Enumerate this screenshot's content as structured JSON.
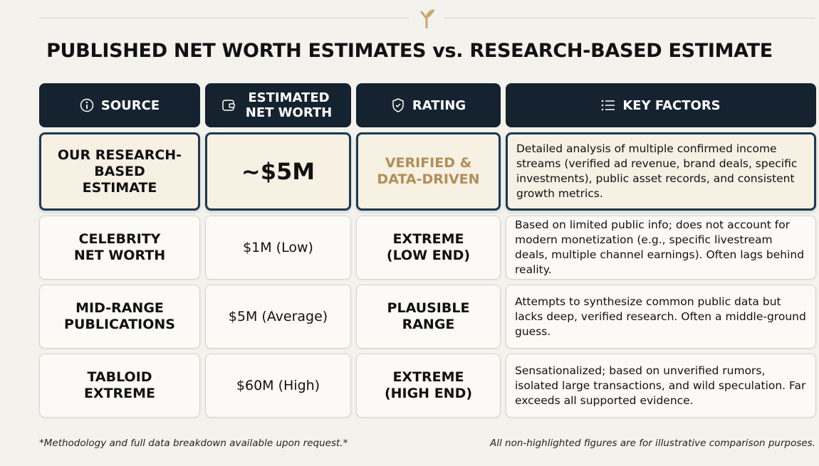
{
  "title": "PUBLISHED NET WORTH ESTIMATES vs. RESEARCH-BASED ESTIMATE",
  "colors": {
    "header_bg": "#14232f",
    "highlight_border": "#1c3a52",
    "gold": "#b08f57",
    "highlight_bg": "#f7f1e4"
  },
  "headers": [
    {
      "label": "SOURCE",
      "icon": "info-icon"
    },
    {
      "label": "ESTIMATED NET WORTH",
      "icon": "wallet-icon"
    },
    {
      "label": "RATING",
      "icon": "shield-check-icon"
    },
    {
      "label": "KEY FACTORS",
      "icon": "list-icon"
    }
  ],
  "rows": [
    {
      "source": "OUR RESEARCH-BASED ESTIMATE",
      "worth": "~$5M",
      "rating": "VERIFIED & DATA-DRIVEN",
      "factors": "Detailed analysis of multiple confirmed income streams (verified ad revenue, brand deals, specific investments), public asset records, and consistent growth metrics.",
      "highlighted": true
    },
    {
      "source": "CELEBRITY NET WORTH",
      "worth": "$1M (Low)",
      "rating": "EXTREME (LOW END)",
      "factors": "Based on limited public info; does not account for modern monetization (e.g., specific livestream deals, multiple channel earnings). Often lags behind reality."
    },
    {
      "source": "MID-RANGE PUBLICATIONS",
      "worth": "$5M (Average)",
      "rating": "PLAUSIBLE RANGE",
      "factors": "Attempts to synthesize common public data but lacks deep, verified research. Often a middle-ground guess."
    },
    {
      "source": "TABLOID EXTREME",
      "worth": "$60M (High)",
      "rating": "EXTREME (HIGH END)",
      "factors": "Sensationalized; based on unverified rumors, isolated large transactions, and wild speculation. Far exceeds all supported evidence."
    }
  ],
  "footer": {
    "left": "*Methodology and full data breakdown available upon request.*",
    "right": "All non-highlighted figures are for illustrative comparison purposes."
  }
}
